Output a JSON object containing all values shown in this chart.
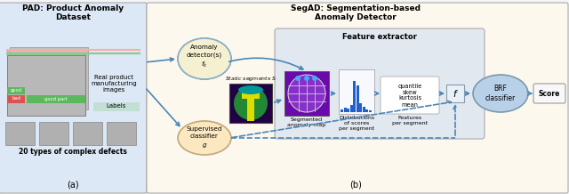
{
  "fig_width": 6.4,
  "fig_height": 2.18,
  "dpi": 100,
  "bg_color": "#f5f5f5",
  "panel_a_bg": "#dce8f5",
  "panel_b_bg": "#fdf8ee",
  "feature_box_bg": "#e2e8f0",
  "title_a": "PAD: Product Anomaly\nDataset",
  "title_b": "SegAD: Segmentation-based\nAnomaly Detector",
  "subtitle_a": "20 types of complex defects",
  "label_a": "(a)",
  "label_b": "(b)",
  "text_real_product": "Real product\nmanufacturing\nimages",
  "text_labels": "Labels",
  "text_good": "good",
  "text_bad": "bad",
  "text_good_part": "good part",
  "text_anomaly_detector": "Anomaly\ndetector(s)\n$f_k$",
  "text_supervised": "Supervised\nclassifier\n$g$",
  "text_static_segments": "Static segments $S$",
  "text_feature_extractor": "Feature extractor",
  "text_segmented_map": "Segmented\nanomaly map",
  "text_distributions": "Distributions\nof scores\nper segment",
  "text_features": "Features\nper segment",
  "text_features_box": "quantile\nskew\nkurtosis\nmean",
  "text_brf": "BRF\nclassifier",
  "text_f": "$f$",
  "text_score": "Score",
  "color_good_label": "#5cb85c",
  "color_bad_label": "#d9534f",
  "color_arrow": "#4a86b8",
  "color_anomaly_fill": "#f5f0d0",
  "color_anomaly_edge": "#8aaec8",
  "color_supervised_fill": "#fce8c0",
  "color_supervised_edge": "#c0a878",
  "color_brf_fill": "#b8d0e8",
  "color_brf_edge": "#7a9ab0",
  "color_feature_box": "#d8e4ee",
  "color_score_fill": "#f8f8f8",
  "color_f_fill": "#e8f0f8",
  "color_seg_purple": "#6a0aad",
  "color_seg_circle": "#8830cc",
  "color_heatmap_green": "#228833",
  "color_heatmap_yellow": "#dddd00",
  "color_heatmap_teal": "#009999",
  "color_heatmap_dark": "#220044",
  "bar_heights": [
    3,
    5,
    4,
    8,
    35,
    30,
    10,
    6,
    3,
    2
  ],
  "green_border": "#88cc88",
  "pink_border": "#ffaaaa"
}
